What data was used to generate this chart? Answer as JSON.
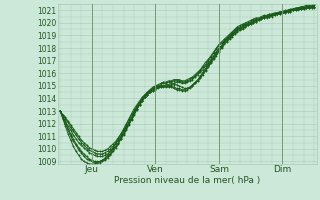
{
  "bg_color": "#cce8d8",
  "plot_bg_color": "#cce8d8",
  "grid_color": "#aac8b8",
  "line_color": "#1a5c1a",
  "ylabel": "Pression niveau de la mer( hPa )",
  "ylim": [
    1008.8,
    1021.5
  ],
  "yticks": [
    1009,
    1010,
    1011,
    1012,
    1013,
    1014,
    1015,
    1016,
    1017,
    1018,
    1019,
    1020,
    1021
  ],
  "xtick_labels": [
    "Jeu",
    "Ven",
    "Sam",
    "Dim"
  ],
  "xtick_positions": [
    0.125,
    0.375,
    0.625,
    0.875
  ],
  "total_hours": 192,
  "n_points": 97,
  "series": [
    [
      1013.0,
      1012.6,
      1012.2,
      1011.8,
      1011.5,
      1011.1,
      1010.8,
      1010.5,
      1010.3,
      1010.1,
      1009.9,
      1009.7,
      1009.6,
      1009.5,
      1009.4,
      1009.4,
      1009.4,
      1009.5,
      1009.6,
      1009.8,
      1010.0,
      1010.2,
      1010.5,
      1010.8,
      1011.1,
      1011.5,
      1011.9,
      1012.3,
      1012.7,
      1013.1,
      1013.5,
      1013.8,
      1014.1,
      1014.3,
      1014.5,
      1014.7,
      1014.8,
      1014.9,
      1015.0,
      1015.0,
      1015.1,
      1015.1,
      1015.2,
      1015.2,
      1015.3,
      1015.3,
      1015.2,
      1015.2,
      1015.3,
      1015.4,
      1015.5,
      1015.7,
      1015.9,
      1016.1,
      1016.3,
      1016.6,
      1016.8,
      1017.1,
      1017.4,
      1017.7,
      1018.0,
      1018.2,
      1018.5,
      1018.7,
      1018.9,
      1019.1,
      1019.3,
      1019.5,
      1019.6,
      1019.7,
      1019.8,
      1019.9,
      1020.0,
      1020.1,
      1020.2,
      1020.3,
      1020.4,
      1020.5,
      1020.5,
      1020.6,
      1020.6,
      1020.7,
      1020.7,
      1020.8,
      1020.8,
      1020.9,
      1020.9,
      1021.0,
      1021.0,
      1021.1,
      1021.1,
      1021.1,
      1021.2,
      1021.2,
      1021.2,
      1021.3,
      1021.3
    ],
    [
      1013.0,
      1012.5,
      1012.0,
      1011.5,
      1011.0,
      1010.6,
      1010.3,
      1009.9,
      1009.7,
      1009.4,
      1009.2,
      1009.1,
      1009.0,
      1008.9,
      1008.9,
      1008.9,
      1009.0,
      1009.1,
      1009.3,
      1009.5,
      1009.8,
      1010.1,
      1010.4,
      1010.8,
      1011.2,
      1011.6,
      1012.0,
      1012.4,
      1012.8,
      1013.2,
      1013.5,
      1013.8,
      1014.1,
      1014.3,
      1014.5,
      1014.6,
      1014.8,
      1014.9,
      1014.9,
      1015.0,
      1015.0,
      1015.0,
      1015.1,
      1015.1,
      1015.1,
      1015.0,
      1014.9,
      1014.8,
      1014.8,
      1014.9,
      1015.0,
      1015.2,
      1015.4,
      1015.6,
      1015.9,
      1016.2,
      1016.5,
      1016.8,
      1017.1,
      1017.4,
      1017.7,
      1018.0,
      1018.3,
      1018.5,
      1018.7,
      1018.9,
      1019.1,
      1019.3,
      1019.4,
      1019.5,
      1019.7,
      1019.8,
      1019.9,
      1020.0,
      1020.1,
      1020.2,
      1020.3,
      1020.4,
      1020.5,
      1020.5,
      1020.6,
      1020.6,
      1020.7,
      1020.7,
      1020.8,
      1020.8,
      1020.9,
      1020.9,
      1021.0,
      1021.0,
      1021.1,
      1021.1,
      1021.1,
      1021.2,
      1021.2,
      1021.2,
      1021.3
    ],
    [
      1013.0,
      1012.7,
      1012.4,
      1012.1,
      1011.7,
      1011.4,
      1011.1,
      1010.8,
      1010.5,
      1010.3,
      1010.1,
      1009.9,
      1009.8,
      1009.7,
      1009.6,
      1009.6,
      1009.6,
      1009.7,
      1009.8,
      1010.0,
      1010.2,
      1010.5,
      1010.7,
      1011.0,
      1011.4,
      1011.7,
      1012.1,
      1012.5,
      1012.9,
      1013.3,
      1013.6,
      1013.9,
      1014.2,
      1014.4,
      1014.6,
      1014.8,
      1014.9,
      1015.0,
      1015.1,
      1015.2,
      1015.2,
      1015.3,
      1015.3,
      1015.4,
      1015.4,
      1015.4,
      1015.3,
      1015.3,
      1015.4,
      1015.5,
      1015.6,
      1015.8,
      1016.0,
      1016.2,
      1016.5,
      1016.7,
      1017.0,
      1017.3,
      1017.6,
      1017.9,
      1018.2,
      1018.4,
      1018.6,
      1018.8,
      1019.0,
      1019.2,
      1019.4,
      1019.6,
      1019.7,
      1019.8,
      1019.9,
      1020.0,
      1020.1,
      1020.2,
      1020.3,
      1020.3,
      1020.4,
      1020.5,
      1020.5,
      1020.6,
      1020.7,
      1020.7,
      1020.8,
      1020.8,
      1020.9,
      1020.9,
      1021.0,
      1021.0,
      1021.1,
      1021.1,
      1021.2,
      1021.2,
      1021.2,
      1021.3,
      1021.3,
      1021.3,
      1021.4
    ],
    [
      1013.0,
      1012.5,
      1012.1,
      1011.6,
      1011.2,
      1010.8,
      1010.4,
      1010.1,
      1009.8,
      1009.6,
      1009.4,
      1009.2,
      1009.1,
      1009.0,
      1009.0,
      1009.0,
      1009.1,
      1009.2,
      1009.4,
      1009.6,
      1009.9,
      1010.2,
      1010.5,
      1010.9,
      1011.3,
      1011.7,
      1012.1,
      1012.5,
      1012.9,
      1013.2,
      1013.5,
      1013.8,
      1014.1,
      1014.3,
      1014.5,
      1014.6,
      1014.7,
      1014.8,
      1014.9,
      1014.9,
      1014.9,
      1014.9,
      1014.9,
      1014.8,
      1014.7,
      1014.7,
      1014.6,
      1014.6,
      1014.7,
      1014.8,
      1015.0,
      1015.2,
      1015.4,
      1015.7,
      1016.0,
      1016.3,
      1016.6,
      1016.9,
      1017.2,
      1017.5,
      1017.8,
      1018.1,
      1018.4,
      1018.6,
      1018.8,
      1019.0,
      1019.2,
      1019.4,
      1019.5,
      1019.6,
      1019.7,
      1019.8,
      1019.9,
      1020.0,
      1020.1,
      1020.2,
      1020.3,
      1020.4,
      1020.4,
      1020.5,
      1020.5,
      1020.6,
      1020.7,
      1020.7,
      1020.8,
      1020.8,
      1020.9,
      1020.9,
      1021.0,
      1021.0,
      1021.0,
      1021.1,
      1021.1,
      1021.2,
      1021.2,
      1021.2,
      1021.2
    ],
    [
      1013.0,
      1012.7,
      1012.5,
      1012.2,
      1011.9,
      1011.6,
      1011.3,
      1011.0,
      1010.7,
      1010.5,
      1010.3,
      1010.1,
      1010.0,
      1009.9,
      1009.8,
      1009.8,
      1009.8,
      1009.9,
      1010.0,
      1010.2,
      1010.4,
      1010.6,
      1010.9,
      1011.2,
      1011.5,
      1011.9,
      1012.3,
      1012.7,
      1013.0,
      1013.4,
      1013.7,
      1014.0,
      1014.3,
      1014.5,
      1014.7,
      1014.9,
      1015.0,
      1015.1,
      1015.2,
      1015.3,
      1015.3,
      1015.4,
      1015.4,
      1015.5,
      1015.5,
      1015.5,
      1015.4,
      1015.4,
      1015.5,
      1015.6,
      1015.7,
      1015.9,
      1016.1,
      1016.3,
      1016.6,
      1016.9,
      1017.1,
      1017.4,
      1017.7,
      1018.0,
      1018.3,
      1018.5,
      1018.7,
      1018.9,
      1019.1,
      1019.3,
      1019.5,
      1019.7,
      1019.8,
      1019.9,
      1020.0,
      1020.1,
      1020.2,
      1020.3,
      1020.4,
      1020.4,
      1020.5,
      1020.6,
      1020.6,
      1020.7,
      1020.7,
      1020.8,
      1020.8,
      1020.9,
      1020.9,
      1021.0,
      1021.0,
      1021.1,
      1021.1,
      1021.2,
      1021.2,
      1021.3,
      1021.3,
      1021.4,
      1021.4,
      1021.4,
      1021.5
    ],
    [
      1013.0,
      1012.4,
      1011.8,
      1011.2,
      1010.7,
      1010.2,
      1009.8,
      1009.5,
      1009.2,
      1009.0,
      1008.9,
      1008.8,
      1008.8,
      1008.8,
      1008.9,
      1009.0,
      1009.1,
      1009.3,
      1009.5,
      1009.8,
      1010.1,
      1010.4,
      1010.8,
      1011.2,
      1011.6,
      1012.0,
      1012.4,
      1012.8,
      1013.2,
      1013.5,
      1013.8,
      1014.1,
      1014.3,
      1014.5,
      1014.7,
      1014.8,
      1014.9,
      1015.0,
      1015.0,
      1015.0,
      1015.0,
      1015.0,
      1015.0,
      1014.9,
      1014.8,
      1014.8,
      1014.7,
      1014.7,
      1014.8,
      1014.9,
      1015.1,
      1015.3,
      1015.5,
      1015.8,
      1016.1,
      1016.4,
      1016.7,
      1017.0,
      1017.3,
      1017.6,
      1017.9,
      1018.2,
      1018.5,
      1018.7,
      1018.9,
      1019.1,
      1019.3,
      1019.5,
      1019.6,
      1019.7,
      1019.8,
      1019.9,
      1020.0,
      1020.1,
      1020.2,
      1020.3,
      1020.4,
      1020.5,
      1020.5,
      1020.6,
      1020.7,
      1020.7,
      1020.8,
      1020.8,
      1020.9,
      1020.9,
      1021.0,
      1021.0,
      1021.1,
      1021.1,
      1021.2,
      1021.2,
      1021.2,
      1021.3,
      1021.3,
      1021.3,
      1021.3
    ]
  ]
}
